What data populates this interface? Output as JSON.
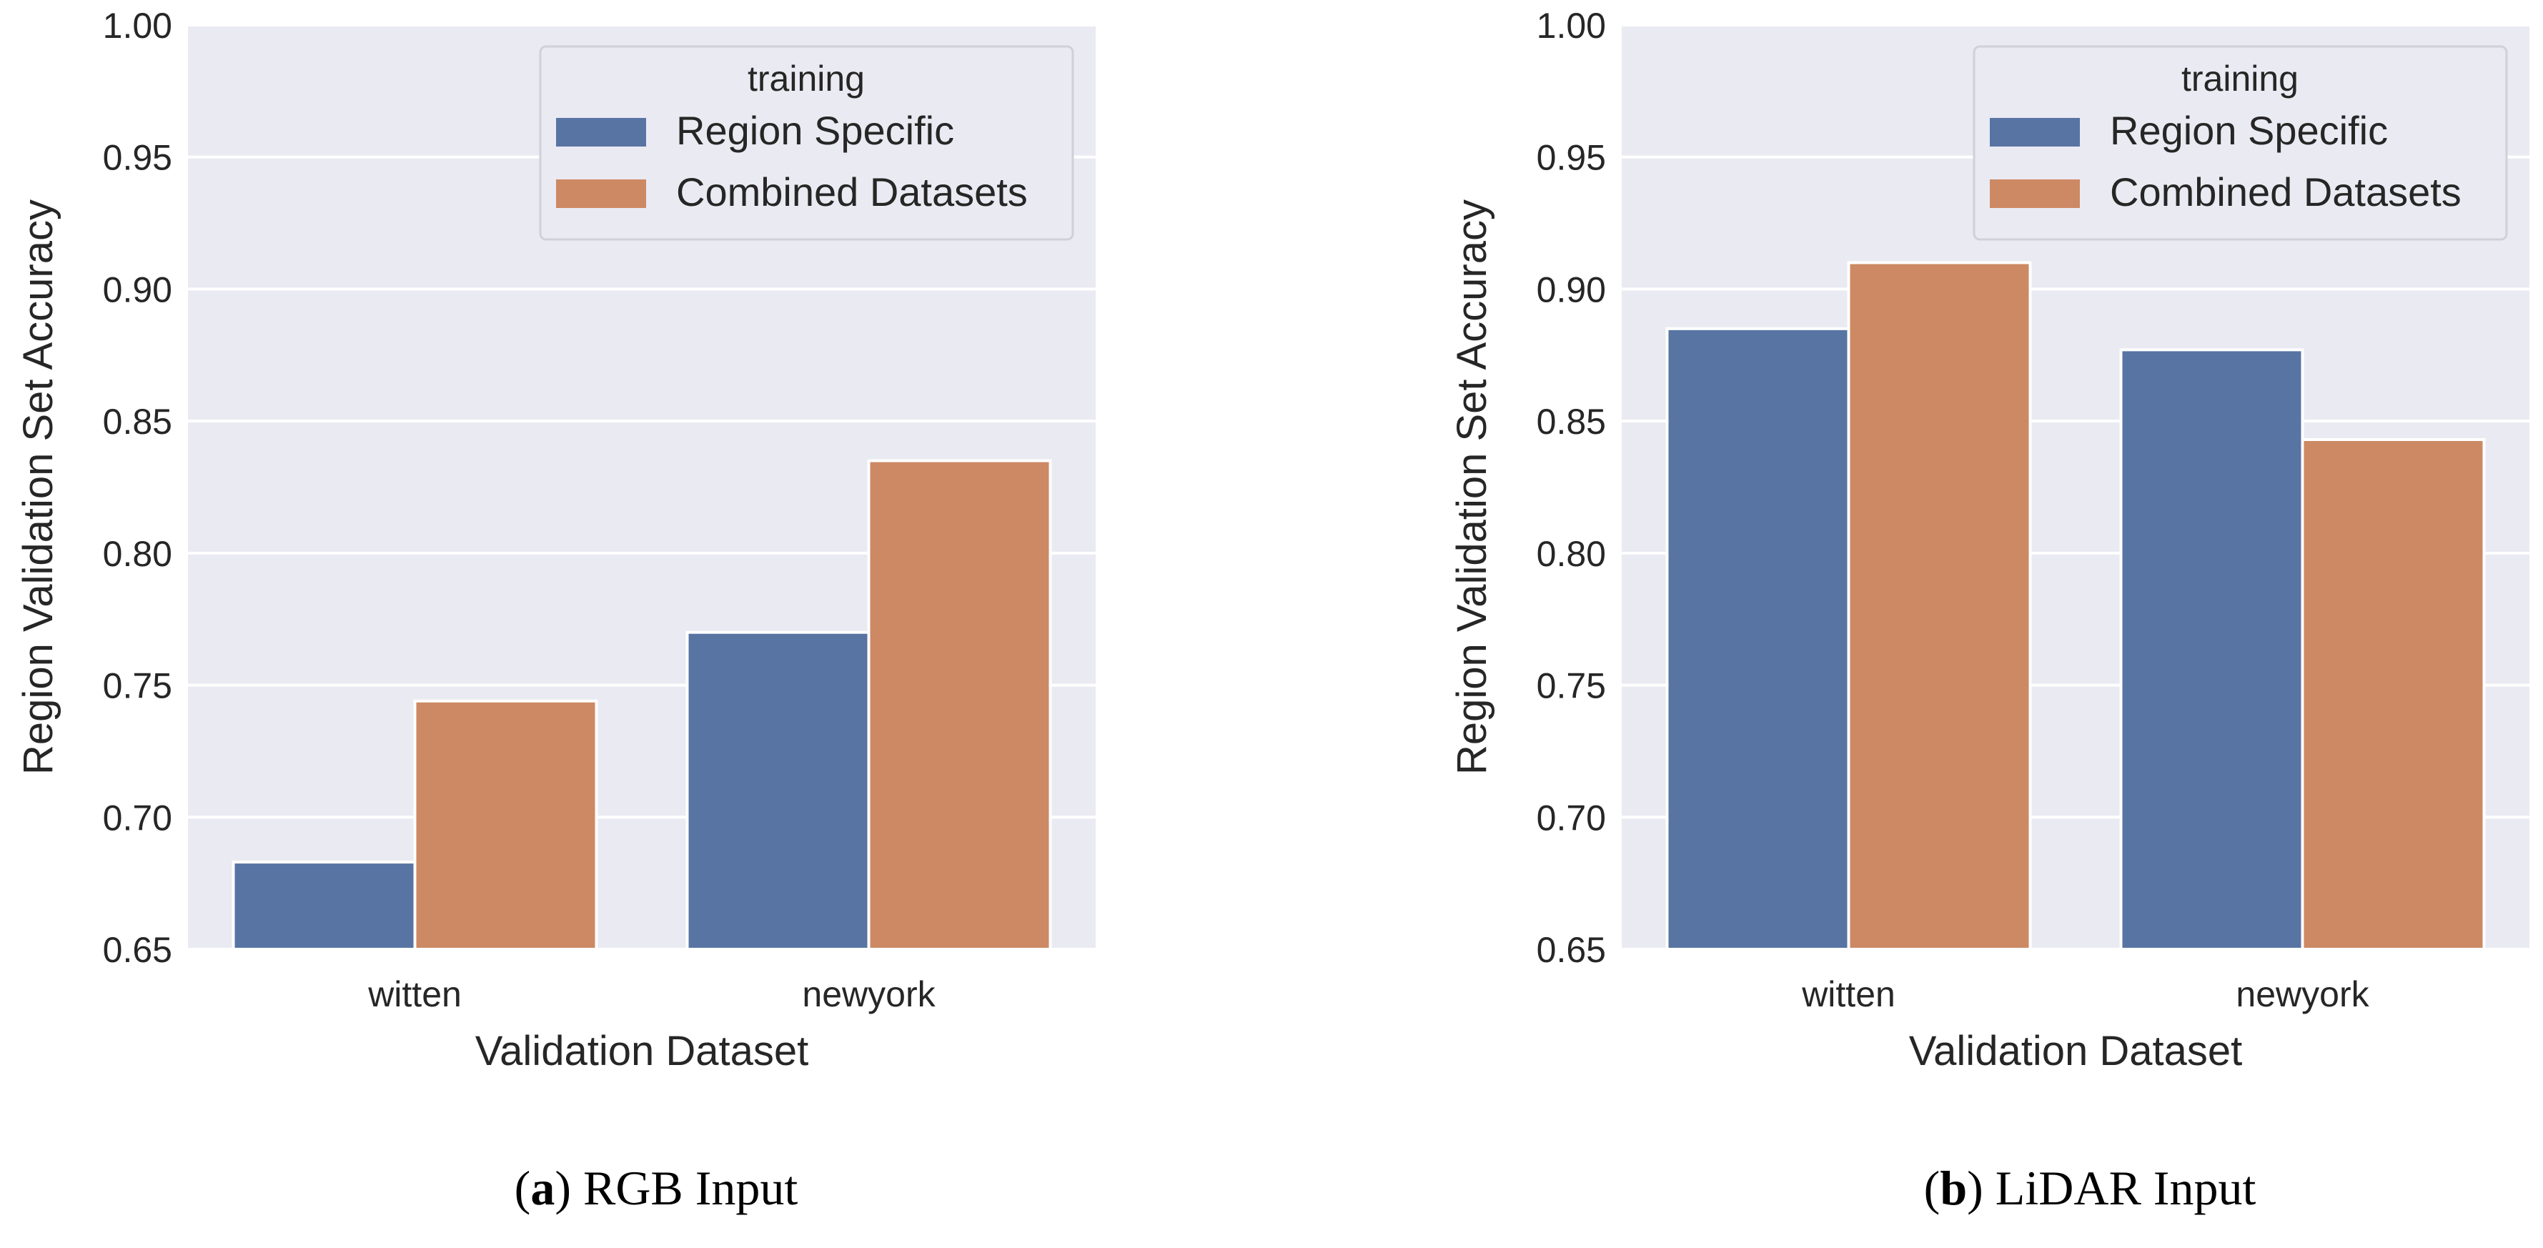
{
  "colors": {
    "panel_bg": "#EAEAF2",
    "grid": "#FFFFFF",
    "region_specific": "#5874A3",
    "combined_datasets": "#CC8963",
    "text": "#262626"
  },
  "chart_data": [
    {
      "type": "bar",
      "caption_letter": "a",
      "caption_text": "RGB Input",
      "categories": [
        "witten",
        "newyork"
      ],
      "series": [
        {
          "name": "Region Specific",
          "values": [
            0.683,
            0.77
          ]
        },
        {
          "name": "Combined Datasets",
          "values": [
            0.744,
            0.835
          ]
        }
      ],
      "xlabel": "Validation Dataset",
      "ylabel": "Region Validation Set Accuracy",
      "ylim": [
        0.65,
        1.0
      ],
      "yticks": [
        "0.65",
        "0.70",
        "0.75",
        "0.80",
        "0.85",
        "0.90",
        "0.95",
        "1.00"
      ],
      "legend": {
        "title": "training",
        "position": "top-right"
      },
      "grid": true
    },
    {
      "type": "bar",
      "caption_letter": "b",
      "caption_text": "LiDAR Input",
      "categories": [
        "witten",
        "newyork"
      ],
      "series": [
        {
          "name": "Region Specific",
          "values": [
            0.885,
            0.877
          ]
        },
        {
          "name": "Combined Datasets",
          "values": [
            0.91,
            0.843
          ]
        }
      ],
      "xlabel": "Validation Dataset",
      "ylabel": "Region Validation Set Accuracy",
      "ylim": [
        0.65,
        1.0
      ],
      "yticks": [
        "0.65",
        "0.70",
        "0.75",
        "0.80",
        "0.85",
        "0.90",
        "0.95",
        "1.00"
      ],
      "legend": {
        "title": "training",
        "position": "top-right"
      },
      "grid": true
    }
  ]
}
